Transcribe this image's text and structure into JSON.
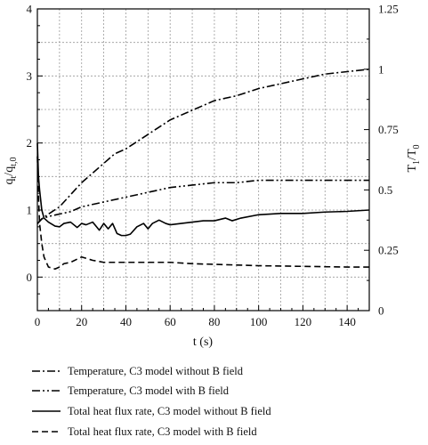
{
  "chart_data": {
    "type": "line",
    "xlabel": "t (s)",
    "ylabel_left": "q_t/q_{t,0}",
    "ylabel_right": "T_1/T_0",
    "xlim": [
      0,
      150
    ],
    "ylim_left": [
      -0.5,
      4
    ],
    "ylim_right": [
      0,
      1.25
    ],
    "x_ticks": [
      "0",
      "20",
      "40",
      "60",
      "80",
      "100",
      "120",
      "140"
    ],
    "y_left_ticks": [
      "0",
      "1",
      "2",
      "3",
      "4"
    ],
    "y_right_ticks": [
      "0",
      "0.25",
      "0.5",
      "0.75",
      "1",
      "1.25"
    ],
    "grid": true,
    "legend_position": "below",
    "series": [
      {
        "name": "Temperature, C3 model without B field",
        "axis": "right",
        "dash": "dashdot",
        "x": [
          0,
          2,
          5,
          10,
          15,
          20,
          25,
          30,
          35,
          40,
          50,
          60,
          70,
          80,
          90,
          100,
          110,
          120,
          130,
          140,
          150
        ],
        "y": [
          0.36,
          0.38,
          0.4,
          0.43,
          0.48,
          0.53,
          0.57,
          0.61,
          0.65,
          0.67,
          0.73,
          0.79,
          0.83,
          0.87,
          0.89,
          0.92,
          0.94,
          0.96,
          0.98,
          0.99,
          1.0
        ]
      },
      {
        "name": "Temperature, C3 model with B field",
        "axis": "right",
        "dash": "dashdotdot",
        "x": [
          0,
          2,
          5,
          10,
          15,
          20,
          30,
          40,
          50,
          60,
          70,
          80,
          90,
          100,
          110,
          120,
          130,
          140,
          150
        ],
        "y": [
          0.36,
          0.38,
          0.39,
          0.4,
          0.41,
          0.43,
          0.45,
          0.47,
          0.49,
          0.51,
          0.52,
          0.53,
          0.53,
          0.54,
          0.54,
          0.54,
          0.54,
          0.54,
          0.54
        ]
      },
      {
        "name": "Total heat flux rate, C3 model without B field",
        "axis": "left",
        "dash": "solid",
        "x": [
          0,
          0.5,
          1,
          2,
          3,
          5,
          8,
          10,
          12,
          15,
          18,
          20,
          22,
          25,
          28,
          30,
          32,
          34,
          36,
          38,
          40,
          42,
          45,
          48,
          50,
          52,
          55,
          58,
          60,
          65,
          70,
          75,
          80,
          85,
          88,
          92,
          100,
          110,
          120,
          130,
          140,
          150
        ],
        "y": [
          2.0,
          1.5,
          1.3,
          1.0,
          0.88,
          0.82,
          0.76,
          0.75,
          0.8,
          0.82,
          0.74,
          0.8,
          0.78,
          0.82,
          0.7,
          0.8,
          0.72,
          0.8,
          0.65,
          0.62,
          0.62,
          0.64,
          0.75,
          0.8,
          0.72,
          0.8,
          0.85,
          0.8,
          0.78,
          0.8,
          0.82,
          0.84,
          0.84,
          0.88,
          0.84,
          0.88,
          0.93,
          0.95,
          0.95,
          0.97,
          0.98,
          1.0
        ]
      },
      {
        "name": "Total heat flux rate, C3 model with B field",
        "axis": "left",
        "dash": "dashed",
        "x": [
          0,
          0.5,
          1,
          2,
          3,
          5,
          8,
          10,
          12,
          15,
          20,
          25,
          30,
          40,
          50,
          60,
          70,
          80,
          90,
          100,
          120,
          140,
          150
        ],
        "y": [
          1.8,
          1.2,
          0.8,
          0.5,
          0.3,
          0.15,
          0.12,
          0.15,
          0.2,
          0.22,
          0.3,
          0.25,
          0.22,
          0.22,
          0.22,
          0.22,
          0.2,
          0.19,
          0.18,
          0.17,
          0.16,
          0.15,
          0.15
        ]
      }
    ]
  }
}
